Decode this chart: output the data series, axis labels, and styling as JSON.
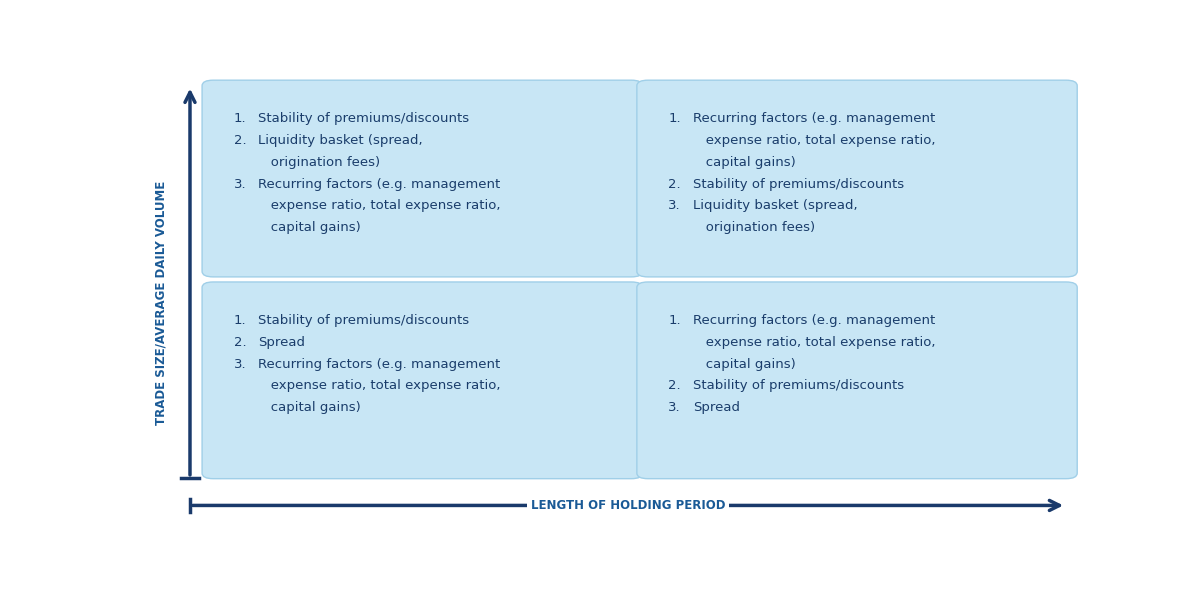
{
  "background_color": "#ffffff",
  "box_fill_color": "#c8e6f5",
  "box_edge_color": "#a0cfe8",
  "axis_color": "#1a3a6b",
  "text_color": "#1a3d6b",
  "label_color": "#1a5a96",
  "xlabel": "LENGTH OF HOLDING PERIOD",
  "ylabel": "TRADE SIZE/AVERAGE DAILY VOLUME",
  "cells": [
    {
      "row": 0,
      "col": 0,
      "lines": [
        {
          "num": "1.",
          "text": "Stability of premiums/discounts"
        },
        {
          "num": "2.",
          "text": "Liquidity basket (spread,"
        },
        {
          "num": "",
          "text": "   origination fees)"
        },
        {
          "num": "3.",
          "text": "Recurring factors (e.g. management"
        },
        {
          "num": "",
          "text": "   expense ratio, total expense ratio,"
        },
        {
          "num": "",
          "text": "   capital gains)"
        }
      ]
    },
    {
      "row": 0,
      "col": 1,
      "lines": [
        {
          "num": "1.",
          "text": "Recurring factors (e.g. management"
        },
        {
          "num": "",
          "text": "   expense ratio, total expense ratio,"
        },
        {
          "num": "",
          "text": "   capital gains)"
        },
        {
          "num": "2.",
          "text": "Stability of premiums/discounts"
        },
        {
          "num": "3.",
          "text": "Liquidity basket (spread,"
        },
        {
          "num": "",
          "text": "   origination fees)"
        }
      ]
    },
    {
      "row": 1,
      "col": 0,
      "lines": [
        {
          "num": "1.",
          "text": "Stability of premiums/discounts"
        },
        {
          "num": "2.",
          "text": "Spread"
        },
        {
          "num": "3.",
          "text": "Recurring factors (e.g. management"
        },
        {
          "num": "",
          "text": "   expense ratio, total expense ratio,"
        },
        {
          "num": "",
          "text": "   capital gains)"
        }
      ]
    },
    {
      "row": 1,
      "col": 1,
      "lines": [
        {
          "num": "1.",
          "text": "Recurring factors (e.g. management"
        },
        {
          "num": "",
          "text": "   expense ratio, total expense ratio,"
        },
        {
          "num": "",
          "text": "   capital gains)"
        },
        {
          "num": "2.",
          "text": "Stability of premiums/discounts"
        },
        {
          "num": "3.",
          "text": "Spread"
        }
      ]
    }
  ]
}
